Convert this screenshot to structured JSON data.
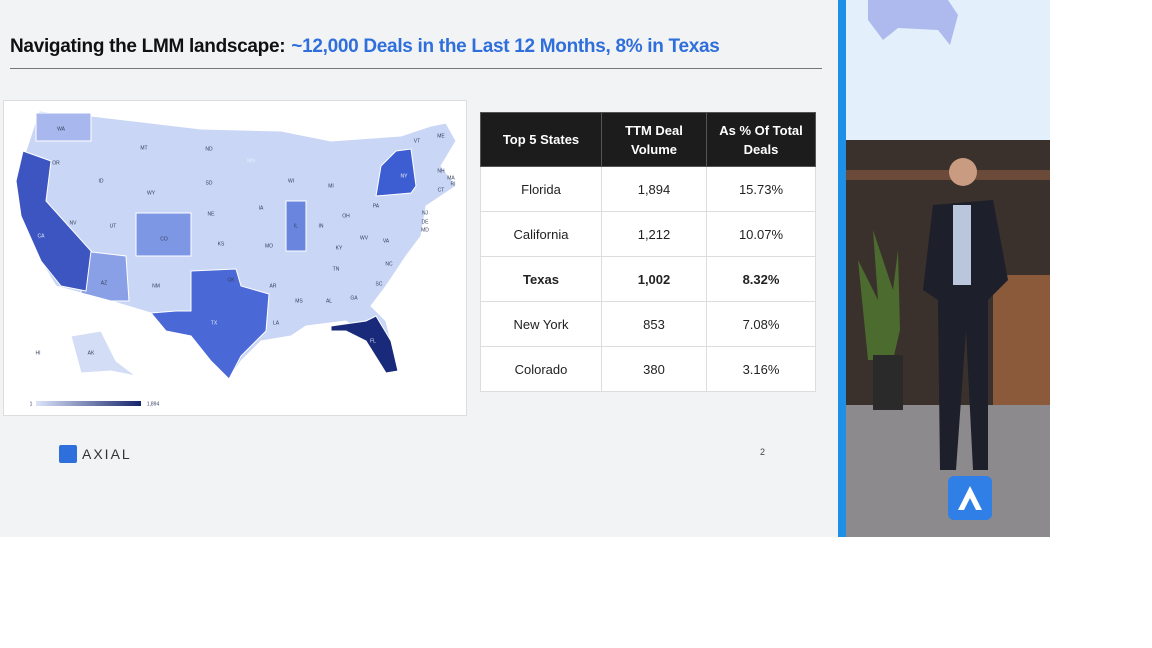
{
  "slide": {
    "title": {
      "lead": "Navigating the LMM landscape:",
      "highlight": "~12,000 Deals in the Last 12 Months, 8% in Texas"
    },
    "map": {
      "state_labels": [
        "WA",
        "MT",
        "ND",
        "MN",
        "OR",
        "ID",
        "WY",
        "SD",
        "WI",
        "MI",
        "NY",
        "VT",
        "NH",
        "ME",
        "MA",
        "RI",
        "CT",
        "NJ",
        "DE",
        "MD",
        "PA",
        "OH",
        "IN",
        "IL",
        "IA",
        "NE",
        "NV",
        "UT",
        "CO",
        "KS",
        "MO",
        "KY",
        "WV",
        "VA",
        "CA",
        "AZ",
        "NM",
        "OK",
        "AR",
        "TN",
        "NC",
        "SC",
        "GA",
        "AL",
        "MS",
        "LA",
        "TX",
        "FL",
        "AK",
        "HI"
      ],
      "legend": {
        "min": "1",
        "max": "1,894"
      }
    },
    "table": {
      "header": [
        "Top 5 States",
        "TTM Deal Volume",
        "As % Of Total Deals"
      ],
      "rows": [
        [
          "Florida",
          "1,894",
          "15.73%"
        ],
        [
          "California",
          "1,212",
          "10.07%"
        ],
        [
          "Texas",
          "1,002",
          "8.32%"
        ],
        [
          "New York",
          "853",
          "7.08%"
        ],
        [
          "Colorado",
          "380",
          "3.16%"
        ]
      ]
    },
    "logo": "AXIAL",
    "page_number": "2"
  }
}
